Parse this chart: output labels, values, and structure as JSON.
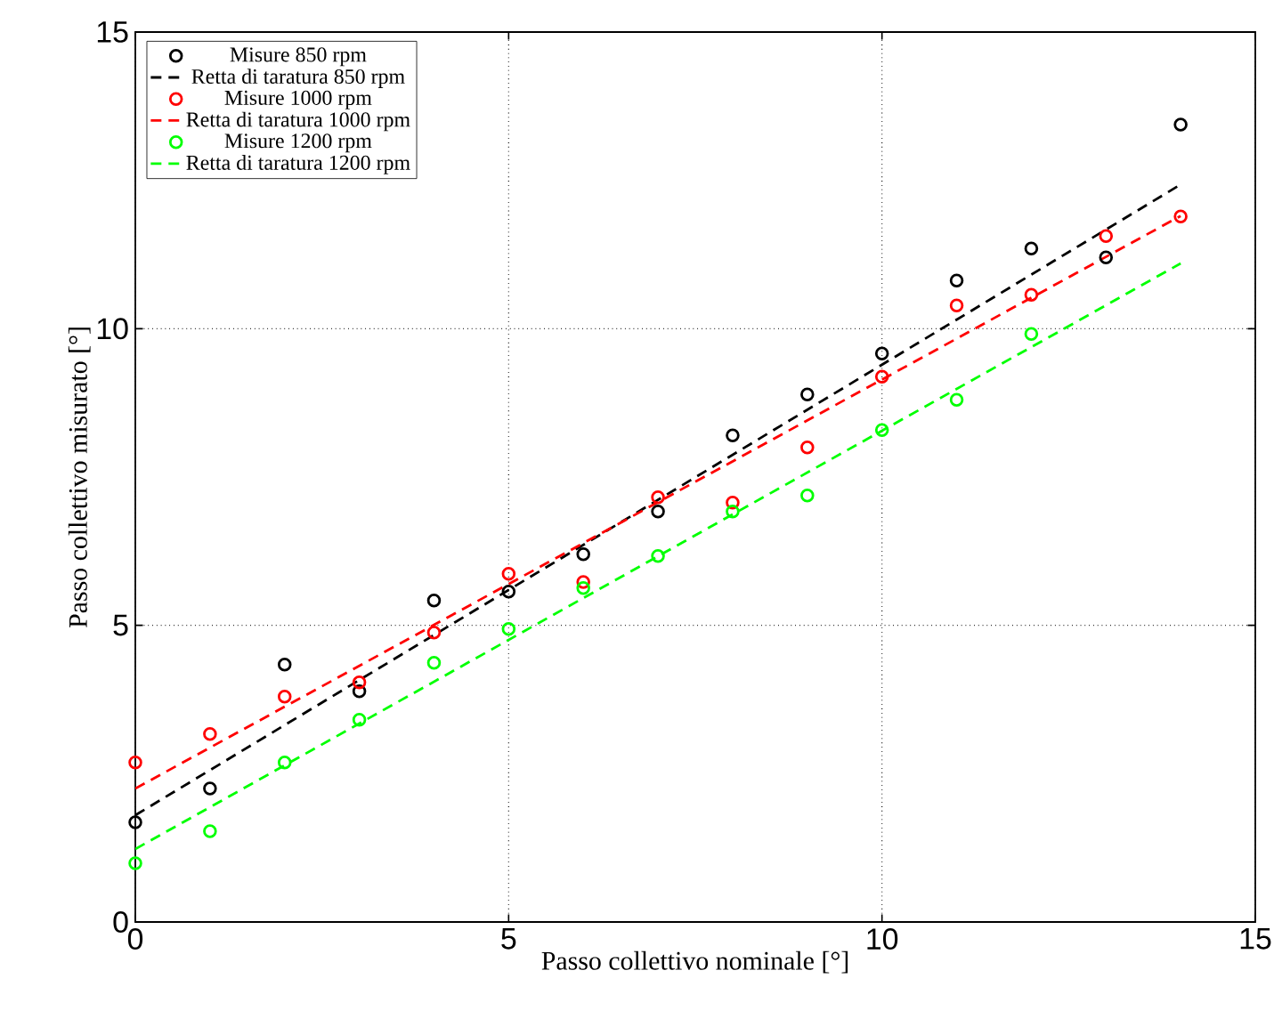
{
  "chart_data": {
    "type": "scatter",
    "xlabel": "Passo collettivo nominale [°]",
    "ylabel": "Passo collettivo misurato [°]",
    "xlim": [
      0,
      15
    ],
    "ylim": [
      0,
      15
    ],
    "xticks": [
      0,
      5,
      10,
      15
    ],
    "yticks": [
      0,
      5,
      10,
      15
    ],
    "grid": true,
    "legend": "top left",
    "series": [
      {
        "name": "Misure 850 rpm",
        "marker": "circle",
        "color": "#000000",
        "x": [
          0,
          1,
          2,
          3,
          4,
          5,
          6,
          7,
          8,
          9,
          10,
          11,
          12,
          13,
          14
        ],
        "values": [
          1.68,
          2.25,
          4.34,
          3.89,
          5.42,
          5.57,
          6.2,
          6.92,
          8.2,
          8.89,
          9.58,
          10.81,
          11.35,
          11.2,
          13.44
        ]
      },
      {
        "name": "Retta di taratura 850 rpm",
        "type": "line",
        "line_style": "dashed",
        "color": "#000000",
        "x": [
          0,
          14
        ],
        "values": [
          1.8,
          12.43
        ]
      },
      {
        "name": "Misure 1000 rpm",
        "marker": "circle",
        "color": "#ff0000",
        "x": [
          0,
          1,
          2,
          3,
          4,
          5,
          6,
          7,
          8,
          9,
          10,
          11,
          12,
          13,
          14
        ],
        "values": [
          2.69,
          3.17,
          3.8,
          4.04,
          4.88,
          5.87,
          5.73,
          7.16,
          7.07,
          8.0,
          9.19,
          10.39,
          10.57,
          11.56,
          11.89
        ]
      },
      {
        "name": "Retta di taratura 1000 rpm",
        "type": "line",
        "line_style": "dashed",
        "color": "#ff0000",
        "x": [
          0,
          14
        ],
        "values": [
          2.25,
          11.9
        ]
      },
      {
        "name": "Misure 1200 rpm",
        "marker": "circle",
        "color": "#00ff00",
        "x": [
          0,
          1,
          2,
          3,
          4,
          5,
          6,
          7,
          8,
          9,
          10,
          11,
          12
        ],
        "values": [
          0.99,
          1.53,
          2.69,
          3.41,
          4.37,
          4.94,
          5.63,
          6.17,
          6.92,
          7.19,
          8.29,
          8.8,
          9.91
        ]
      },
      {
        "name": "Retta di taratura 1200 rpm",
        "type": "line",
        "line_style": "dashed",
        "color": "#00ff00",
        "x": [
          0,
          14
        ],
        "values": [
          1.23,
          11.1
        ]
      }
    ]
  }
}
